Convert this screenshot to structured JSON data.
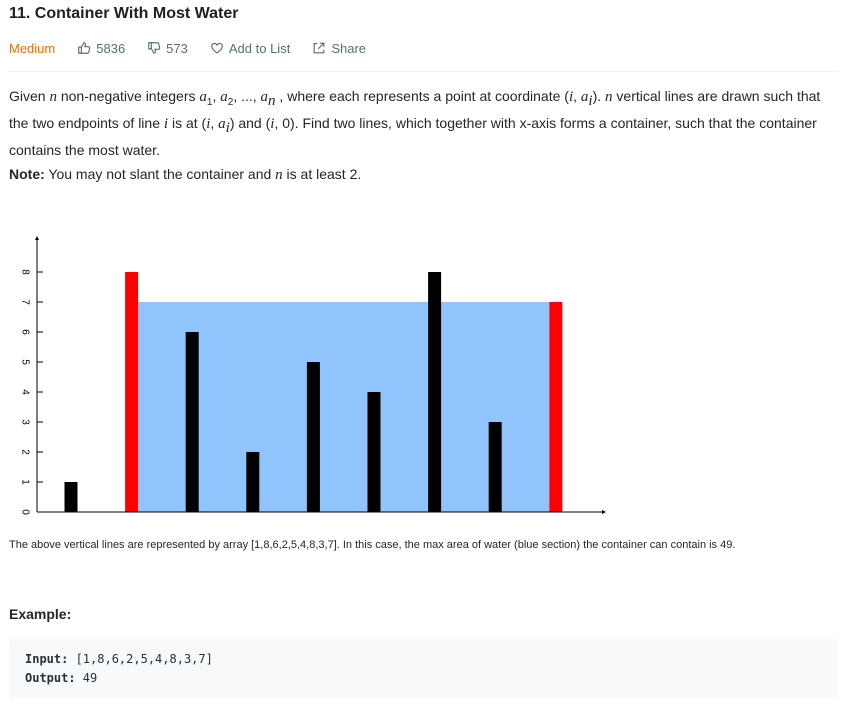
{
  "problem": {
    "title": "11. Container With Most Water",
    "difficulty": "Medium",
    "likes": "5836",
    "dislikes": "573",
    "add_to_list": "Add to List",
    "share": "Share"
  },
  "description": {
    "p1_a": "Given ",
    "n": "n",
    "p1_b": " non-negative integers ",
    "a": "a",
    "sub1": "1",
    "sep1": ", ",
    "sub2": "2",
    "sep2": ", ..., ",
    "subn": "n",
    "p1_c": " , where each represents a point at coordinate (",
    "i": "i",
    "comma": ", ",
    "subi": "i",
    "p1_d": "). ",
    "p1_e": " vertical lines are drawn such that the two endpoints of line ",
    "p1_f": " is at (",
    "p1_g": ") and (",
    "p1_h": ", 0). Find two lines, which together with x-axis forms a container, such that the container contains the most water.",
    "note_label": "Note:",
    "note_a": " You may not slant the container and ",
    "note_b": " is at least 2."
  },
  "chart_data": {
    "type": "bar",
    "values": [
      1,
      8,
      6,
      2,
      5,
      4,
      8,
      3,
      7
    ],
    "highlight_indices": [
      1,
      8
    ],
    "water_level": 7,
    "ylim": [
      0,
      8
    ],
    "y_ticks": [
      "0",
      "1",
      "2",
      "3",
      "4",
      "5",
      "6",
      "7",
      "8"
    ],
    "colors": {
      "bar": "#000000",
      "highlight": "#ff0000",
      "water": "#90c4fc",
      "axis": "#000000"
    }
  },
  "caption": "The above vertical lines are represented by array [1,8,6,2,5,4,8,3,7]. In this case, the max area of water (blue section) the container can contain is 49.",
  "example": {
    "title": "Example:",
    "input_label": "Input:",
    "input_value": " [1,8,6,2,5,4,8,3,7]",
    "output_label": "Output:",
    "output_value": " 49"
  }
}
